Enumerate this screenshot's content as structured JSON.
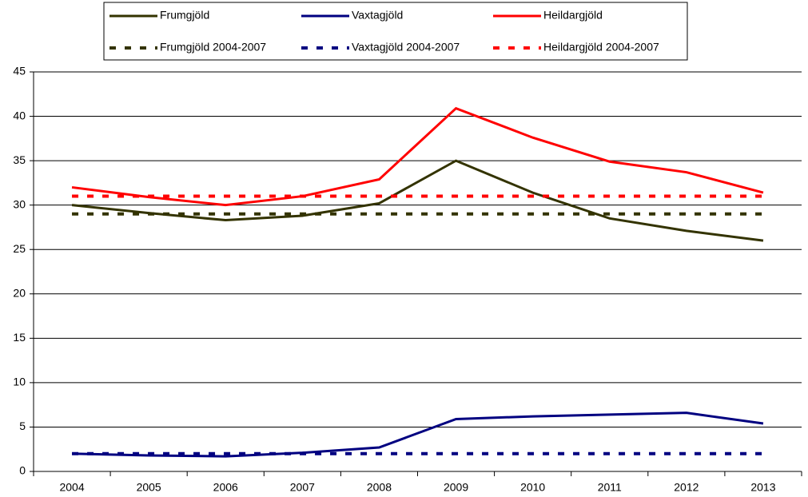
{
  "chart_data": {
    "type": "line",
    "categories": [
      "2004",
      "2005",
      "2006",
      "2007",
      "2008",
      "2009",
      "2010",
      "2011",
      "2012",
      "2013"
    ],
    "series": [
      {
        "name": "Frumgjöld",
        "color": "#333300",
        "style": "solid",
        "values": [
          30,
          29.1,
          28.3,
          28.8,
          30.2,
          35,
          31.4,
          28.5,
          27.1,
          26
        ]
      },
      {
        "name": "Vaxtagjöld",
        "color": "#000080",
        "style": "solid",
        "values": [
          2.0,
          1.8,
          1.7,
          2.1,
          2.7,
          5.9,
          6.2,
          6.4,
          6.6,
          5.4
        ]
      },
      {
        "name": "Heildargjöld",
        "color": "#ff0000",
        "style": "solid",
        "values": [
          32,
          30.9,
          30,
          31,
          32.9,
          40.9,
          37.6,
          34.9,
          33.7,
          31.4
        ]
      },
      {
        "name": "Frumgjöld 2004-2007",
        "color": "#333300",
        "style": "dotted",
        "values": [
          29,
          29,
          29,
          29,
          29,
          29,
          29,
          29,
          29,
          29
        ]
      },
      {
        "name": "Vaxtagjöld 2004-2007",
        "color": "#000080",
        "style": "dotted",
        "values": [
          2,
          2,
          2,
          2,
          2,
          2,
          2,
          2,
          2,
          2
        ]
      },
      {
        "name": "Heildargjöld 2004-2007",
        "color": "#ff0000",
        "style": "dotted",
        "values": [
          31,
          31,
          31,
          31,
          31,
          31,
          31,
          31,
          31,
          31
        ]
      }
    ],
    "ylim": [
      0,
      45
    ],
    "yticks": [
      0,
      5,
      10,
      15,
      20,
      25,
      30,
      35,
      40,
      45
    ],
    "grid": true
  }
}
